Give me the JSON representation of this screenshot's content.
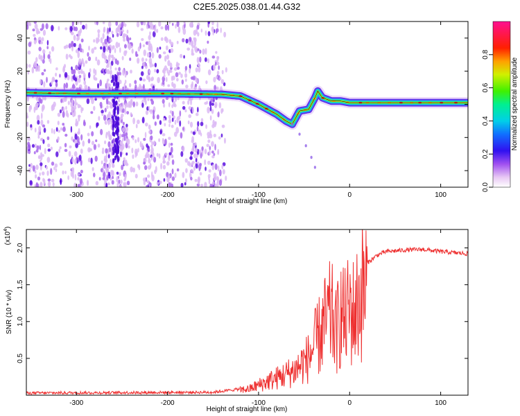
{
  "chart_data": [
    {
      "type": "heatmap",
      "title": "C2E5.2025.038.01.44.G32",
      "xlabel": "Height of straight line (km)",
      "ylabel": "Frequency (Hz)",
      "xlim": [
        -355,
        130
      ],
      "ylim": [
        -50,
        50
      ],
      "xticks": [
        -300,
        -200,
        -100,
        0,
        100
      ],
      "yticks": [
        -40,
        -20,
        0,
        20,
        40
      ],
      "colorbar": {
        "label": "Normalized spectral amplitude",
        "range": [
          0,
          1
        ],
        "ticks": [
          "0.0",
          "0.2",
          "0.4",
          "0.6",
          "0.8"
        ]
      },
      "ridge": {
        "x": [
          -355,
          -300,
          -250,
          -200,
          -140,
          -120,
          -100,
          -90,
          -80,
          -70,
          -63,
          -55,
          -45,
          -38,
          -35,
          -30,
          -25,
          -20,
          -10,
          0,
          20,
          60,
          100,
          130
        ],
        "y": [
          7,
          6.5,
          6.5,
          6.5,
          6,
          5,
          0,
          -3,
          -6,
          -10,
          -12,
          -4,
          -3,
          4,
          8,
          4,
          3,
          2,
          2,
          1,
          1,
          1,
          1,
          1
        ]
      },
      "branch": {
        "x": [
          -63,
          -55,
          -48,
          -42,
          -38
        ],
        "y": [
          -12,
          -18,
          -25,
          -32,
          -38
        ]
      }
    },
    {
      "type": "line",
      "xlabel": "Height of straight line (km)",
      "ylabel": "SNR (10 * v/v)",
      "yscale_label": "(x10",
      "yscale_exp": "4",
      "yscale_close": ")",
      "xlim": [
        -355,
        130
      ],
      "ylim": [
        0,
        2.25
      ],
      "xticks": [
        -300,
        -200,
        -100,
        0,
        100
      ],
      "yticks": [
        "0.5",
        "1.0",
        "1.5",
        "2.0"
      ],
      "series": [
        {
          "color": "#ee3030",
          "x": [
            -355,
            -150,
            -110,
            -90,
            -75,
            -60,
            -45,
            -35,
            -25,
            -20,
            -15,
            -10,
            -5,
            0,
            5,
            10,
            15,
            20,
            25,
            30,
            40,
            60,
            80,
            100,
            130
          ],
          "y": [
            0.03,
            0.04,
            0.1,
            0.22,
            0.3,
            0.4,
            0.6,
            0.9,
            1.2,
            1.3,
            1.0,
            1.3,
            1.2,
            1.4,
            1.3,
            1.5,
            1.7,
            1.8,
            1.85,
            1.9,
            1.95,
            1.97,
            1.98,
            1.95,
            1.92
          ]
        }
      ]
    }
  ]
}
